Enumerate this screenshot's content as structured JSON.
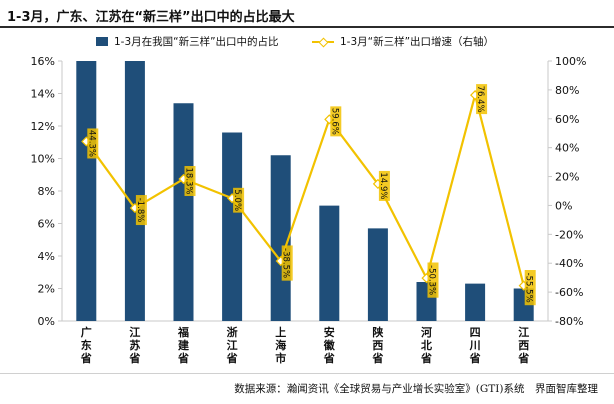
{
  "title": "1-3月，广东、江苏在“新三样”出口中的占比最大",
  "source_note": "数据来源：瀚闻资讯《全球贸易与产业增长实验室》(GTI)系统　界面智库整理",
  "colors": {
    "bar": "#1f4e79",
    "line": "#f2c200",
    "label_bg": "#f2c200",
    "axis": "#c8c8c8",
    "text": "#111111"
  },
  "chart_data": {
    "type": "bar",
    "categories": [
      "广东省",
      "江苏省",
      "福建省",
      "浙江省",
      "上海市",
      "安徽省",
      "陕西省",
      "河北省",
      "四川省",
      "江西省"
    ],
    "series": [
      {
        "name": "1-3月在我国“新三样”出口中的占比",
        "type": "bar",
        "axis": "left",
        "values": [
          16.0,
          16.0,
          13.4,
          11.6,
          10.2,
          7.1,
          5.7,
          2.4,
          2.3,
          2.0
        ]
      },
      {
        "name": "1-3月“新三样”出口增速（右轴）",
        "type": "line",
        "axis": "right",
        "values": [
          44.3,
          -1.8,
          18.3,
          5.0,
          -38.5,
          59.6,
          14.9,
          -50.3,
          76.4,
          -55.5
        ],
        "labels": [
          "44.3%",
          "-1.8%",
          "18.3%",
          "5.0%",
          "-38.5%",
          "59.6%",
          "14.9%",
          "-50.3%",
          "",
          "-55.5%"
        ]
      }
    ],
    "y_left": {
      "min": 0,
      "max": 16,
      "ticks": [
        0,
        2,
        4,
        6,
        8,
        10,
        12,
        14,
        16
      ],
      "tick_labels": [
        "0%",
        "2%",
        "4%",
        "6%",
        "8%",
        "10%",
        "12%",
        "14%",
        "16%"
      ]
    },
    "y_right": {
      "min": -80,
      "max": 100,
      "ticks": [
        -80,
        -60,
        -40,
        -20,
        0,
        20,
        40,
        60,
        80,
        100
      ],
      "tick_labels": [
        "-80%",
        "-60%",
        "-40%",
        "-20%",
        "0%",
        "20%",
        "40%",
        "60%",
        "80%",
        "100%"
      ]
    },
    "extra_labels": [
      {
        "index": 8,
        "text": "76.4%"
      }
    ],
    "grid": false,
    "legend_position": "top"
  },
  "legend": {
    "bar_label": "1-3月在我国“新三样”出口中的占比",
    "line_label": "1-3月“新三样”出口增速（右轴）"
  }
}
